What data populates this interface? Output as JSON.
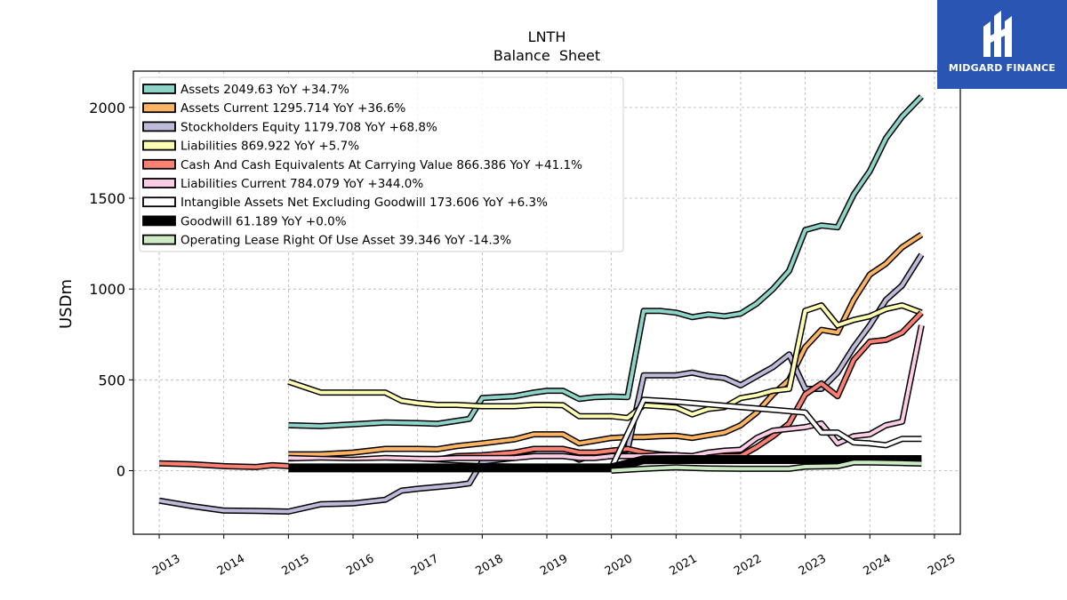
{
  "brand": {
    "name": "MIDGARD FINANCE",
    "color": "#2a55b3"
  },
  "chart_data": {
    "type": "line",
    "title": "LNTH",
    "subtitle": "Balance  Sheet",
    "ylabel": "USDm",
    "xlabel": "",
    "xlim": [
      2012.6,
      2025.4
    ],
    "ylim": [
      -350,
      2200
    ],
    "x_ticks": [
      2013,
      2014,
      2015,
      2016,
      2017,
      2018,
      2019,
      2020,
      2021,
      2022,
      2023,
      2024,
      2025
    ],
    "y_ticks": [
      0,
      500,
      1000,
      1500,
      2000
    ],
    "grid": true,
    "legend_position": "top-left",
    "series": [
      {
        "name": "Assets",
        "legend": "Assets  2049.63 YoY +34.7%",
        "color": "#8dd3c7",
        "points": [
          [
            2015.0,
            250
          ],
          [
            2015.5,
            245
          ],
          [
            2016.0,
            255
          ],
          [
            2016.5,
            265
          ],
          [
            2017.0,
            262
          ],
          [
            2017.3,
            258
          ],
          [
            2017.8,
            285
          ],
          [
            2018.0,
            400
          ],
          [
            2018.5,
            410
          ],
          [
            2018.8,
            430
          ],
          [
            2019.0,
            440
          ],
          [
            2019.25,
            440
          ],
          [
            2019.5,
            395
          ],
          [
            2019.75,
            405
          ],
          [
            2020.0,
            408
          ],
          [
            2020.25,
            405
          ],
          [
            2020.5,
            880
          ],
          [
            2020.75,
            880
          ],
          [
            2021.0,
            870
          ],
          [
            2021.25,
            845
          ],
          [
            2021.5,
            860
          ],
          [
            2021.75,
            850
          ],
          [
            2022.0,
            865
          ],
          [
            2022.25,
            920
          ],
          [
            2022.5,
            1000
          ],
          [
            2022.75,
            1100
          ],
          [
            2023.0,
            1325
          ],
          [
            2023.25,
            1350
          ],
          [
            2023.5,
            1340
          ],
          [
            2023.75,
            1520
          ],
          [
            2024.0,
            1650
          ],
          [
            2024.25,
            1830
          ],
          [
            2024.5,
            1950
          ],
          [
            2024.8,
            2060
          ]
        ]
      },
      {
        "name": "Assets Current",
        "legend": "Assets Current  1295.714 YoY +36.6%",
        "color": "#fdb462",
        "points": [
          [
            2015.0,
            90
          ],
          [
            2015.5,
            90
          ],
          [
            2016.0,
            100
          ],
          [
            2016.5,
            120
          ],
          [
            2017.0,
            120
          ],
          [
            2017.3,
            118
          ],
          [
            2017.6,
            135
          ],
          [
            2018.0,
            150
          ],
          [
            2018.5,
            172
          ],
          [
            2018.8,
            200
          ],
          [
            2019.0,
            200
          ],
          [
            2019.25,
            200
          ],
          [
            2019.5,
            150
          ],
          [
            2019.75,
            165
          ],
          [
            2020.0,
            180
          ],
          [
            2020.25,
            185
          ],
          [
            2020.5,
            185
          ],
          [
            2020.75,
            190
          ],
          [
            2021.0,
            192
          ],
          [
            2021.25,
            180
          ],
          [
            2021.5,
            195
          ],
          [
            2021.75,
            210
          ],
          [
            2022.0,
            250
          ],
          [
            2022.25,
            320
          ],
          [
            2022.5,
            420
          ],
          [
            2022.75,
            500
          ],
          [
            2023.0,
            680
          ],
          [
            2023.25,
            775
          ],
          [
            2023.5,
            760
          ],
          [
            2023.75,
            940
          ],
          [
            2024.0,
            1080
          ],
          [
            2024.25,
            1140
          ],
          [
            2024.5,
            1230
          ],
          [
            2024.8,
            1300
          ]
        ]
      },
      {
        "name": "Stockholders Equity",
        "legend": "Stockholders Equity  1179.708 YoY +68.8%",
        "color": "#bebada",
        "points": [
          [
            2013.0,
            -165
          ],
          [
            2013.5,
            -195
          ],
          [
            2014.0,
            -220
          ],
          [
            2014.5,
            -222
          ],
          [
            2015.0,
            -225
          ],
          [
            2015.5,
            -185
          ],
          [
            2016.0,
            -180
          ],
          [
            2016.5,
            -160
          ],
          [
            2016.75,
            -110
          ],
          [
            2017.0,
            -100
          ],
          [
            2017.3,
            -90
          ],
          [
            2017.6,
            -80
          ],
          [
            2017.8,
            -70
          ],
          [
            2018.0,
            50
          ],
          [
            2018.5,
            70
          ],
          [
            2018.8,
            90
          ],
          [
            2019.0,
            100
          ],
          [
            2019.25,
            100
          ],
          [
            2019.5,
            60
          ],
          [
            2019.75,
            90
          ],
          [
            2020.0,
            110
          ],
          [
            2020.25,
            115
          ],
          [
            2020.5,
            525
          ],
          [
            2020.75,
            525
          ],
          [
            2021.0,
            525
          ],
          [
            2021.25,
            540
          ],
          [
            2021.5,
            520
          ],
          [
            2021.75,
            510
          ],
          [
            2022.0,
            470
          ],
          [
            2022.25,
            520
          ],
          [
            2022.5,
            570
          ],
          [
            2022.75,
            640
          ],
          [
            2023.0,
            450
          ],
          [
            2023.25,
            450
          ],
          [
            2023.5,
            540
          ],
          [
            2023.75,
            680
          ],
          [
            2024.0,
            800
          ],
          [
            2024.25,
            940
          ],
          [
            2024.5,
            1020
          ],
          [
            2024.8,
            1190
          ]
        ]
      },
      {
        "name": "Liabilities",
        "legend": "Liabilities  869.922 YoY +5.7%",
        "color": "#ffffb3",
        "points": [
          [
            2015.0,
            490
          ],
          [
            2015.5,
            430
          ],
          [
            2016.0,
            430
          ],
          [
            2016.5,
            430
          ],
          [
            2016.75,
            385
          ],
          [
            2017.0,
            372
          ],
          [
            2017.3,
            362
          ],
          [
            2017.6,
            362
          ],
          [
            2018.0,
            355
          ],
          [
            2018.5,
            355
          ],
          [
            2018.8,
            362
          ],
          [
            2019.0,
            362
          ],
          [
            2019.25,
            360
          ],
          [
            2019.5,
            300
          ],
          [
            2019.75,
            300
          ],
          [
            2020.0,
            300
          ],
          [
            2020.25,
            290
          ],
          [
            2020.5,
            360
          ],
          [
            2020.75,
            355
          ],
          [
            2021.0,
            348
          ],
          [
            2021.25,
            310
          ],
          [
            2021.5,
            340
          ],
          [
            2021.75,
            350
          ],
          [
            2022.0,
            400
          ],
          [
            2022.25,
            415
          ],
          [
            2022.5,
            440
          ],
          [
            2022.75,
            450
          ],
          [
            2023.0,
            880
          ],
          [
            2023.25,
            910
          ],
          [
            2023.5,
            800
          ],
          [
            2023.75,
            830
          ],
          [
            2024.0,
            850
          ],
          [
            2024.25,
            890
          ],
          [
            2024.5,
            910
          ],
          [
            2024.8,
            870
          ]
        ]
      },
      {
        "name": "Cash And Cash Equivalents At Carrying Value",
        "legend": "Cash And Cash Equivalents At Carrying Value  866.386 YoY +41.1%",
        "color": "#fb8072",
        "points": [
          [
            2013.0,
            40
          ],
          [
            2013.5,
            35
          ],
          [
            2014.0,
            25
          ],
          [
            2014.5,
            20
          ],
          [
            2014.75,
            30
          ],
          [
            2015.0,
            25
          ],
          [
            2015.5,
            30
          ],
          [
            2016.0,
            40
          ],
          [
            2016.5,
            50
          ],
          [
            2017.0,
            60
          ],
          [
            2017.3,
            60
          ],
          [
            2017.6,
            80
          ],
          [
            2018.0,
            85
          ],
          [
            2018.5,
            100
          ],
          [
            2018.8,
            120
          ],
          [
            2019.0,
            120
          ],
          [
            2019.25,
            120
          ],
          [
            2019.5,
            100
          ],
          [
            2019.75,
            100
          ],
          [
            2020.0,
            110
          ],
          [
            2020.25,
            120
          ],
          [
            2020.5,
            100
          ],
          [
            2020.75,
            90
          ],
          [
            2021.0,
            85
          ],
          [
            2021.25,
            80
          ],
          [
            2021.5,
            80
          ],
          [
            2021.75,
            80
          ],
          [
            2022.0,
            80
          ],
          [
            2022.25,
            130
          ],
          [
            2022.5,
            190
          ],
          [
            2022.75,
            260
          ],
          [
            2023.0,
            420
          ],
          [
            2023.25,
            480
          ],
          [
            2023.5,
            410
          ],
          [
            2023.75,
            610
          ],
          [
            2024.0,
            710
          ],
          [
            2024.25,
            720
          ],
          [
            2024.5,
            760
          ],
          [
            2024.8,
            870
          ]
        ]
      },
      {
        "name": "Liabilities Current",
        "legend": "Liabilities Current  784.079 YoY +344.0%",
        "color": "#fccde5",
        "points": [
          [
            2015.0,
            70
          ],
          [
            2015.5,
            65
          ],
          [
            2016.0,
            60
          ],
          [
            2016.5,
            70
          ],
          [
            2017.0,
            65
          ],
          [
            2017.3,
            65
          ],
          [
            2017.6,
            70
          ],
          [
            2018.0,
            70
          ],
          [
            2018.5,
            70
          ],
          [
            2018.8,
            80
          ],
          [
            2019.0,
            80
          ],
          [
            2019.25,
            80
          ],
          [
            2019.5,
            70
          ],
          [
            2019.75,
            70
          ],
          [
            2020.0,
            80
          ],
          [
            2020.25,
            80
          ],
          [
            2020.5,
            80
          ],
          [
            2020.75,
            85
          ],
          [
            2021.0,
            85
          ],
          [
            2021.25,
            80
          ],
          [
            2021.5,
            100
          ],
          [
            2021.75,
            110
          ],
          [
            2022.0,
            115
          ],
          [
            2022.25,
            180
          ],
          [
            2022.5,
            220
          ],
          [
            2022.75,
            230
          ],
          [
            2023.0,
            240
          ],
          [
            2023.25,
            260
          ],
          [
            2023.5,
            150
          ],
          [
            2023.75,
            190
          ],
          [
            2024.0,
            200
          ],
          [
            2024.25,
            250
          ],
          [
            2024.5,
            270
          ],
          [
            2024.8,
            800
          ]
        ]
      },
      {
        "name": "Intangible Assets Net Excluding Goodwill",
        "legend": "Intangible Assets Net Excluding Goodwill  173.606 YoY +6.3%",
        "color": "#ffffff",
        "points": [
          [
            2015.0,
            40
          ],
          [
            2015.5,
            45
          ],
          [
            2016.0,
            42
          ],
          [
            2016.5,
            45
          ],
          [
            2017.0,
            40
          ],
          [
            2017.3,
            35
          ],
          [
            2017.6,
            30
          ],
          [
            2018.0,
            25
          ],
          [
            2018.5,
            22
          ],
          [
            2018.8,
            20
          ],
          [
            2019.0,
            20
          ],
          [
            2019.25,
            20
          ],
          [
            2019.5,
            15
          ],
          [
            2019.75,
            15
          ],
          [
            2020.0,
            15
          ],
          [
            2020.5,
            390
          ],
          [
            2021.0,
            380
          ],
          [
            2021.5,
            365
          ],
          [
            2022.0,
            350
          ],
          [
            2022.5,
            335
          ],
          [
            2023.0,
            320
          ],
          [
            2023.25,
            210
          ],
          [
            2023.5,
            210
          ],
          [
            2023.75,
            155
          ],
          [
            2024.0,
            150
          ],
          [
            2024.25,
            140
          ],
          [
            2024.5,
            175
          ],
          [
            2024.8,
            175
          ]
        ]
      },
      {
        "name": "Goodwill",
        "legend": "Goodwill  61.189 YoY +0.0%",
        "color": "#000000",
        "points": [
          [
            2015.0,
            15
          ],
          [
            2016.0,
            15
          ],
          [
            2017.0,
            15
          ],
          [
            2018.0,
            15
          ],
          [
            2019.0,
            15
          ],
          [
            2020.0,
            15
          ],
          [
            2020.5,
            60
          ],
          [
            2021.0,
            61
          ],
          [
            2022.0,
            61
          ],
          [
            2023.0,
            61
          ],
          [
            2024.0,
            61
          ],
          [
            2024.8,
            61
          ]
        ]
      },
      {
        "name": "Operating Lease Right Of Use Asset",
        "legend": "Operating Lease Right Of Use Asset  39.346 YoY -14.3%",
        "color": "#ccebc5",
        "points": [
          [
            2020.0,
            0
          ],
          [
            2020.5,
            10
          ],
          [
            2021.0,
            18
          ],
          [
            2021.5,
            12
          ],
          [
            2022.0,
            10
          ],
          [
            2022.5,
            10
          ],
          [
            2022.75,
            10
          ],
          [
            2023.0,
            22
          ],
          [
            2023.5,
            25
          ],
          [
            2023.75,
            45
          ],
          [
            2024.0,
            45
          ],
          [
            2024.5,
            42
          ],
          [
            2024.8,
            39
          ]
        ]
      }
    ]
  }
}
